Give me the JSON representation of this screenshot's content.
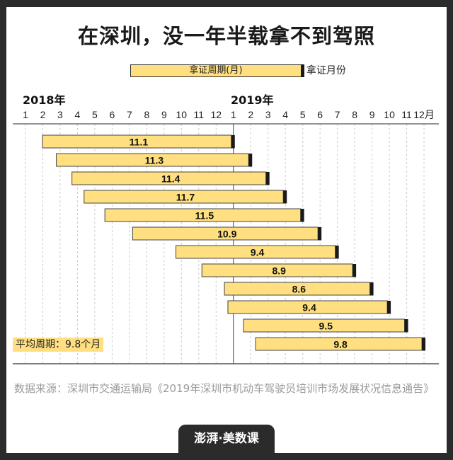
{
  "title": "在深圳，没一年半载拿不到驾照",
  "legend": {
    "bar_label": "拿证周期(月)",
    "end_label": "拿证月份"
  },
  "chart_data": {
    "type": "bar",
    "subtype": "gantt",
    "year_labels": [
      "2018年",
      "2019年"
    ],
    "x_ticks": [
      "1",
      "2",
      "3",
      "4",
      "5",
      "6",
      "7",
      "8",
      "9",
      "10",
      "11",
      "12",
      "1",
      "2",
      "3",
      "4",
      "5",
      "6",
      "7",
      "8",
      "9",
      "10",
      "11",
      "12月"
    ],
    "end_months": [
      "2019-01",
      "2019-02",
      "2019-03",
      "2019-04",
      "2019-05",
      "2019-06",
      "2019-07",
      "2019-08",
      "2019-09",
      "2019-10",
      "2019-11",
      "2019-12"
    ],
    "values": [
      11.1,
      11.3,
      11.4,
      11.7,
      11.5,
      10.9,
      9.4,
      8.9,
      8.6,
      9.4,
      9.5,
      9.8
    ],
    "labels": [
      "11.1",
      "11.3",
      "11.4",
      "11.7",
      "11.5",
      "10.9",
      "9.4",
      "8.9",
      "8.6",
      "9.4",
      "9.5",
      "9.8"
    ],
    "bar_color": "#ffdf80",
    "cap_color": "#1a1a1a",
    "grid": "dashed vertical per month",
    "annotation": "平均周期：9.8个月"
  },
  "source": "数据来源：深圳市交通运输局《2019年深圳市机动车驾驶员培训市场发展状况信息通告》",
  "logo": "澎湃·美数课"
}
